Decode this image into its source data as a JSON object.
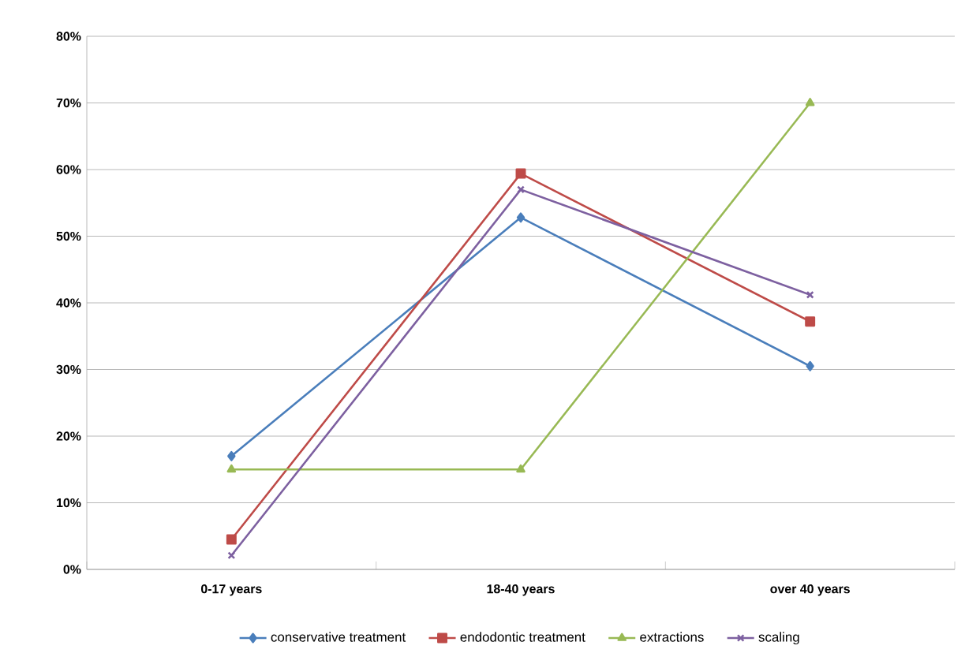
{
  "chart_data": {
    "type": "line",
    "categories": [
      "0-17 years",
      "18-40 years",
      "over 40 years"
    ],
    "series": [
      {
        "name": "conservative treatment",
        "color": "#4a7ebb",
        "marker": "diamond",
        "values": [
          17,
          52.8,
          30.5
        ]
      },
      {
        "name": "endodontic treatment",
        "color": "#be4b48",
        "marker": "square",
        "values": [
          4.5,
          59.4,
          37.2
        ]
      },
      {
        "name": "extractions",
        "color": "#98b954",
        "marker": "triangle",
        "values": [
          15,
          15,
          70
        ]
      },
      {
        "name": "scaling",
        "color": "#7d60a0",
        "marker": "cross",
        "values": [
          2.1,
          57,
          41.2
        ]
      }
    ],
    "ylim": [
      0,
      80
    ],
    "yticks": [
      {
        "value": 0,
        "label": "0%"
      },
      {
        "value": 10,
        "label": "10%"
      },
      {
        "value": 20,
        "label": "20%"
      },
      {
        "value": 30,
        "label": "30%"
      },
      {
        "value": 40,
        "label": "40%"
      },
      {
        "value": 50,
        "label": "50%"
      },
      {
        "value": 60,
        "label": "60%"
      },
      {
        "value": 70,
        "label": "70%"
      },
      {
        "value": 80,
        "label": "80%"
      }
    ],
    "grid": "y",
    "legend": "bottom",
    "line_style": "solid"
  }
}
